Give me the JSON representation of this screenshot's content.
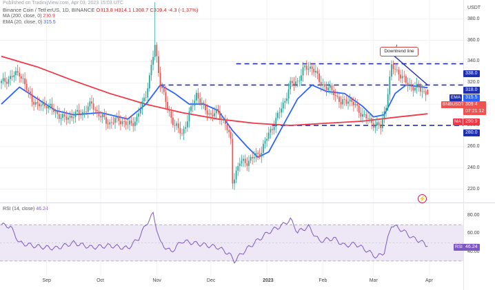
{
  "header": {
    "top_line": "Published on TradingView.com, Apr 03, 2023 15:03 UTC",
    "symbol_line": "Binance Coin / TetherUS, 1D, BINANCE",
    "ohlc": "O313.8 H314.1 L308.7 C309.4 -4.3 (-1.37%)",
    "ma_label": "MA (200, close, 0)",
    "ma_value": "290.9",
    "ema_label": "EMA (20, close, 0)",
    "ema_value": "315.5",
    "rsi_label": "RSI (14, close)",
    "rsi_value": "46.24"
  },
  "axis": {
    "currency": "USDT",
    "price_ticks": [
      "380.0",
      "360.0",
      "340.0",
      "320.0",
      "300.0",
      "280.0",
      "260.0",
      "240.0",
      "220.0"
    ],
    "rsi_ticks": [
      "80.00",
      "60.00",
      "40.00"
    ],
    "months": [
      "Sep",
      "Oct",
      "Nov",
      "Dec",
      "2023",
      "Feb",
      "Mar",
      "Apr"
    ]
  },
  "price_tags": {
    "level_338": "338.0",
    "level_318": "318.0",
    "ema_name": "EMA",
    "ema": "315.5",
    "symbol": "BNBUSDT",
    "last": "309.4",
    "countdown": "07:21:12",
    "ma_name": "MA",
    "ma": "290.9",
    "level_280": "280.0",
    "rsi_name": "RSI",
    "rsi": "46.24"
  },
  "annotation": "Downtrend line",
  "colors": {
    "up": "#26a69a",
    "down": "#ef5350",
    "ema": "#2962ff",
    "ma": "#f23645",
    "level": "#1e2fb0",
    "rsi": "#7e57c2",
    "rsi_band": "#ede7f6"
  },
  "chart_data": {
    "type": "candlestick",
    "title": "Binance Coin / TetherUS, 1D, BINANCE",
    "ylabel": "USDT",
    "ylim": [
      210,
      398
    ],
    "x_ticks": [
      "Sep",
      "Oct",
      "Nov",
      "Dec",
      "2023",
      "Feb",
      "Mar",
      "Apr"
    ],
    "last": {
      "open": 313.8,
      "high": 314.1,
      "low": 308.7,
      "close": 309.4,
      "change": -4.3,
      "change_pct": -1.37
    },
    "close_path": [
      [
        0,
        320
      ],
      [
        5,
        325
      ],
      [
        10,
        330
      ],
      [
        15,
        310
      ],
      [
        20,
        298
      ],
      [
        25,
        300
      ],
      [
        30,
        292
      ],
      [
        35,
        286
      ],
      [
        40,
        290
      ],
      [
        45,
        292
      ],
      [
        50,
        300
      ],
      [
        55,
        288
      ],
      [
        60,
        282
      ],
      [
        65,
        286
      ],
      [
        70,
        280
      ],
      [
        75,
        286
      ],
      [
        80,
        310
      ],
      [
        82,
        325
      ],
      [
        85,
        355
      ],
      [
        88,
        320
      ],
      [
        92,
        296
      ],
      [
        96,
        280
      ],
      [
        100,
        272
      ],
      [
        104,
        290
      ],
      [
        108,
        310
      ],
      [
        112,
        296
      ],
      [
        116,
        290
      ],
      [
        120,
        292
      ],
      [
        124,
        282
      ],
      [
        127,
        265
      ],
      [
        128,
        228
      ],
      [
        132,
        245
      ],
      [
        136,
        246
      ],
      [
        140,
        250
      ],
      [
        144,
        256
      ],
      [
        148,
        272
      ],
      [
        152,
        285
      ],
      [
        156,
        300
      ],
      [
        160,
        318
      ],
      [
        164,
        322
      ],
      [
        168,
        334
      ],
      [
        172,
        335
      ],
      [
        176,
        322
      ],
      [
        180,
        315
      ],
      [
        184,
        312
      ],
      [
        188,
        300
      ],
      [
        192,
        305
      ],
      [
        196,
        298
      ],
      [
        200,
        290
      ],
      [
        204,
        284
      ],
      [
        208,
        280
      ],
      [
        210,
        278
      ],
      [
        213,
        300
      ],
      [
        216,
        335
      ],
      [
        220,
        330
      ],
      [
        224,
        320
      ],
      [
        228,
        316
      ],
      [
        232,
        314
      ],
      [
        236,
        309.4
      ]
    ],
    "series": [
      {
        "name": "EMA (20, close, 0)",
        "last": 315.5,
        "path": [
          [
            0,
            300
          ],
          [
            10,
            316
          ],
          [
            20,
            305
          ],
          [
            30,
            294
          ],
          [
            40,
            290
          ],
          [
            55,
            292
          ],
          [
            70,
            286
          ],
          [
            80,
            300
          ],
          [
            88,
            318
          ],
          [
            96,
            310
          ],
          [
            104,
            300
          ],
          [
            112,
            300
          ],
          [
            120,
            294
          ],
          [
            128,
            275
          ],
          [
            136,
            260
          ],
          [
            142,
            250
          ],
          [
            148,
            255
          ],
          [
            156,
            280
          ],
          [
            164,
            305
          ],
          [
            172,
            318
          ],
          [
            180,
            312
          ],
          [
            190,
            310
          ],
          [
            200,
            298
          ],
          [
            206,
            288
          ],
          [
            212,
            290
          ],
          [
            218,
            310
          ],
          [
            224,
            318
          ],
          [
            236,
            315.5
          ]
        ]
      },
      {
        "name": "MA (200, close, 0)",
        "last": 290.9,
        "path": [
          [
            0,
            345
          ],
          [
            20,
            335
          ],
          [
            40,
            322
          ],
          [
            60,
            310
          ],
          [
            80,
            300
          ],
          [
            100,
            292
          ],
          [
            120,
            286
          ],
          [
            140,
            282
          ],
          [
            160,
            280
          ],
          [
            180,
            282
          ],
          [
            200,
            284
          ],
          [
            220,
            288
          ],
          [
            236,
            290.9
          ]
        ]
      }
    ],
    "levels": [
      338.0,
      318.0,
      280.0
    ],
    "annotations": [
      "Downtrend line"
    ],
    "rsi": {
      "name": "RSI (14, close)",
      "last": 46.24,
      "ylim": [
        20,
        90
      ],
      "band": [
        30,
        70
      ],
      "path": [
        [
          0,
          70
        ],
        [
          5,
          68
        ],
        [
          10,
          50
        ],
        [
          15,
          48
        ],
        [
          20,
          46
        ],
        [
          30,
          44
        ],
        [
          40,
          50
        ],
        [
          50,
          45
        ],
        [
          60,
          47
        ],
        [
          70,
          44
        ],
        [
          76,
          55
        ],
        [
          80,
          70
        ],
        [
          84,
          82
        ],
        [
          88,
          50
        ],
        [
          94,
          40
        ],
        [
          100,
          52
        ],
        [
          106,
          50
        ],
        [
          112,
          48
        ],
        [
          120,
          45
        ],
        [
          126,
          38
        ],
        [
          129,
          30
        ],
        [
          134,
          40
        ],
        [
          140,
          50
        ],
        [
          148,
          62
        ],
        [
          156,
          70
        ],
        [
          160,
          76
        ],
        [
          164,
          62
        ],
        [
          170,
          68
        ],
        [
          176,
          52
        ],
        [
          184,
          55
        ],
        [
          190,
          47
        ],
        [
          196,
          49
        ],
        [
          202,
          42
        ],
        [
          208,
          34
        ],
        [
          212,
          40
        ],
        [
          216,
          70
        ],
        [
          222,
          64
        ],
        [
          228,
          55
        ],
        [
          232,
          52
        ],
        [
          236,
          46.24
        ]
      ]
    }
  }
}
